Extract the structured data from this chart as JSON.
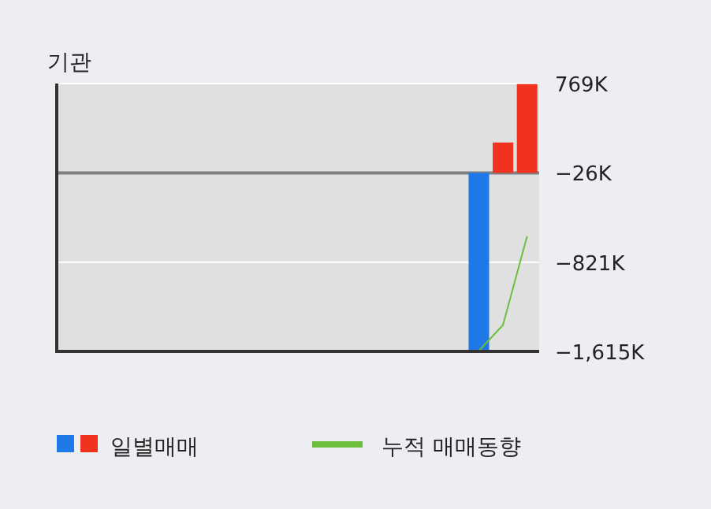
{
  "chart_data": {
    "type": "bar",
    "title": "기관",
    "categories": [
      null,
      null,
      null,
      null,
      null,
      null,
      null,
      null,
      null,
      null,
      null,
      null,
      null,
      null,
      null,
      null,
      null,
      null,
      null,
      null
    ],
    "series": [
      {
        "name": "일별매매",
        "colors": [
          null,
          null,
          null,
          null,
          null,
          null,
          null,
          null,
          null,
          null,
          null,
          null,
          null,
          null,
          null,
          null,
          null,
          "#1e78e8",
          "#f0321e",
          "#f0321e"
        ],
        "base": [
          null,
          null,
          null,
          null,
          null,
          null,
          null,
          null,
          null,
          null,
          null,
          null,
          null,
          null,
          null,
          null,
          null,
          -26,
          -26,
          -26
        ],
        "values": [
          null,
          null,
          null,
          null,
          null,
          null,
          null,
          null,
          null,
          null,
          null,
          null,
          null,
          null,
          null,
          null,
          null,
          -1590,
          270,
          790
        ]
      },
      {
        "name": "누적 매매동향",
        "type": "line",
        "color": "#6cbe3c",
        "values": [
          null,
          null,
          null,
          null,
          null,
          null,
          null,
          null,
          null,
          null,
          null,
          null,
          null,
          null,
          null,
          null,
          null,
          -1610,
          -1380,
          -590
        ]
      }
    ],
    "ylim": [
      -1615,
      769
    ],
    "yticks": [
      {
        "value": 769,
        "label": "769K"
      },
      {
        "value": -26,
        "label": "−26K"
      },
      {
        "value": -821,
        "label": "−821K"
      },
      {
        "value": -1615,
        "label": "−1,615K"
      }
    ],
    "ref_lines": [
      {
        "axis": "y",
        "value": 769,
        "color": "#ffffff"
      },
      {
        "axis": "y",
        "value": -26,
        "color": "#808080"
      },
      {
        "axis": "y",
        "value": -821,
        "color": "#ffffff"
      }
    ],
    "legend": "bottom"
  }
}
